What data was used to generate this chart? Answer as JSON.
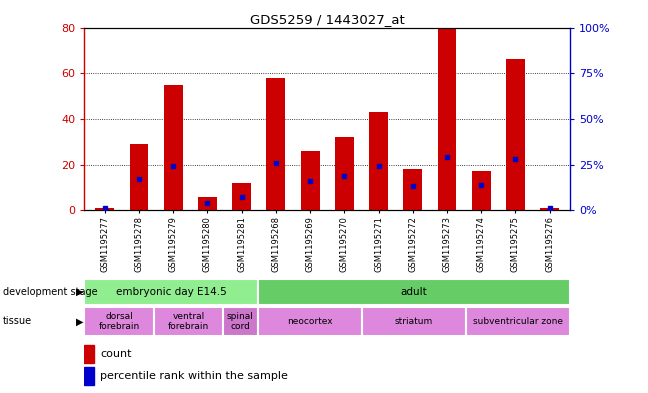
{
  "title": "GDS5259 / 1443027_at",
  "samples": [
    "GSM1195277",
    "GSM1195278",
    "GSM1195279",
    "GSM1195280",
    "GSM1195281",
    "GSM1195268",
    "GSM1195269",
    "GSM1195270",
    "GSM1195271",
    "GSM1195272",
    "GSM1195273",
    "GSM1195274",
    "GSM1195275",
    "GSM1195276"
  ],
  "count_values": [
    1,
    29,
    55,
    6,
    12,
    58,
    26,
    32,
    43,
    18,
    80,
    17,
    66,
    1
  ],
  "percentile_values": [
    1,
    17,
    24,
    4,
    7,
    26,
    16,
    19,
    24,
    13,
    29,
    14,
    28,
    1
  ],
  "bar_color": "#CC0000",
  "dot_color": "#0000CC",
  "left_ylim": [
    0,
    80
  ],
  "right_ylim": [
    0,
    100
  ],
  "left_yticks": [
    0,
    20,
    40,
    60,
    80
  ],
  "right_yticks": [
    0,
    25,
    50,
    75,
    100
  ],
  "right_yticklabels": [
    "0%",
    "25%",
    "50%",
    "75%",
    "100%"
  ],
  "dev_stage_groups": [
    {
      "label": "embryonic day E14.5",
      "start": 0,
      "end": 5,
      "color": "#90EE90"
    },
    {
      "label": "adult",
      "start": 5,
      "end": 14,
      "color": "#66CC66"
    }
  ],
  "tissue_groups": [
    {
      "label": "dorsal\nforebrain",
      "start": 0,
      "end": 2,
      "color": "#DD88DD"
    },
    {
      "label": "ventral\nforebrain",
      "start": 2,
      "end": 4,
      "color": "#DD88DD"
    },
    {
      "label": "spinal\ncord",
      "start": 4,
      "end": 5,
      "color": "#CC77CC"
    },
    {
      "label": "neocortex",
      "start": 5,
      "end": 8,
      "color": "#DD88DD"
    },
    {
      "label": "striatum",
      "start": 8,
      "end": 11,
      "color": "#DD88DD"
    },
    {
      "label": "subventricular zone",
      "start": 11,
      "end": 14,
      "color": "#DD88DD"
    }
  ],
  "bg_color": "#FFFFFF",
  "plot_bg_color": "#FFFFFF",
  "title_color": "#000000"
}
